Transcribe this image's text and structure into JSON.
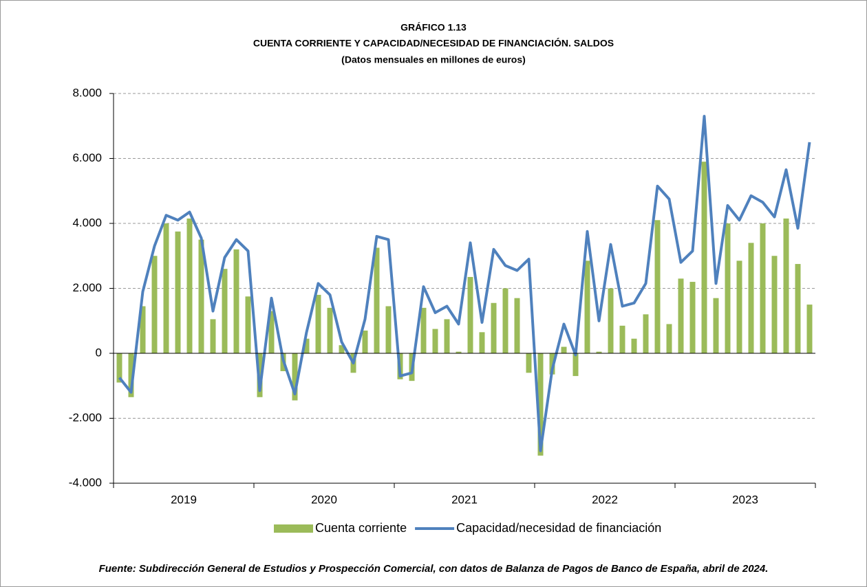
{
  "chart_data": {
    "type": "bar_line",
    "title": "GRÁFICO 1.13",
    "subtitle": "CUENTA CORRIENTE Y CAPACIDAD/NECESIDAD DE FINANCIACIÓN. SALDOS",
    "note": "(Datos mensuales en millones de euros)",
    "source": "Fuente: Subdirección General de Estudios y Prospección Comercial, con datos de Balanza de Pagos de Banco de España, abril de 2024.",
    "categories": [
      null,
      null,
      null,
      null,
      null,
      null,
      null,
      null,
      null,
      null,
      null,
      null,
      null,
      null,
      null,
      null,
      null,
      null,
      null,
      null,
      null,
      null,
      null,
      null,
      null,
      null,
      null,
      null,
      null,
      null,
      null,
      null,
      null,
      null,
      null,
      null,
      null,
      null,
      null,
      null,
      null,
      null,
      null,
      null,
      null,
      null,
      null,
      null,
      null,
      null,
      null,
      null,
      null,
      null,
      null,
      null,
      null,
      null,
      null,
      null
    ],
    "groups": [
      "2019",
      "2020",
      "2021",
      "2022",
      "2023"
    ],
    "ylim": [
      -4000,
      8000
    ],
    "yticks": [
      {
        "value": -4000,
        "label": "-4.000"
      },
      {
        "value": -2000,
        "label": "-2.000"
      },
      0,
      {
        "value": 2000,
        "label": "2.000"
      },
      {
        "value": 4000,
        "label": "4.000"
      },
      {
        "value": 6000,
        "label": "6.000"
      },
      {
        "value": 8000,
        "label": "8.000"
      }
    ],
    "grid": true,
    "legend": "bottom",
    "series": [
      {
        "name": "Cuenta corriente",
        "type": "bar",
        "color": "#9bbb59",
        "values": [
          -900,
          -1350,
          1450,
          3000,
          4000,
          3750,
          4150,
          3500,
          1050,
          2600,
          3200,
          1750,
          -1350,
          1300,
          -550,
          -1450,
          450,
          1800,
          1400,
          250,
          -600,
          700,
          3250,
          1450,
          -800,
          -850,
          1400,
          750,
          1050,
          50,
          2350,
          650,
          1550,
          2000,
          1700,
          -600,
          -3150,
          -650,
          200,
          -700,
          2850,
          50,
          2000,
          850,
          450,
          1200,
          4100,
          900,
          2300,
          2200,
          5900,
          1700,
          4000,
          2850,
          3400,
          4000,
          3000,
          4150,
          2750,
          1500
        ]
      },
      {
        "name": "Capacidad/necesidad de financiación",
        "type": "line",
        "color": "#4f81bd",
        "values": [
          -750,
          -1200,
          1900,
          3300,
          4250,
          4100,
          4350,
          3550,
          1300,
          2950,
          3500,
          3150,
          -1150,
          1700,
          -200,
          -1250,
          650,
          2150,
          1800,
          350,
          -300,
          1050,
          3600,
          3500,
          -700,
          -600,
          2050,
          1250,
          1450,
          900,
          3400,
          950,
          3200,
          2700,
          2550,
          2900,
          -3000,
          -500,
          900,
          -50,
          3750,
          1000,
          3350,
          1450,
          1550,
          2150,
          5150,
          4750,
          2800,
          3150,
          7300,
          2150,
          4550,
          4100,
          4850,
          4650,
          4200,
          5650,
          3850,
          6500
        ]
      }
    ]
  }
}
